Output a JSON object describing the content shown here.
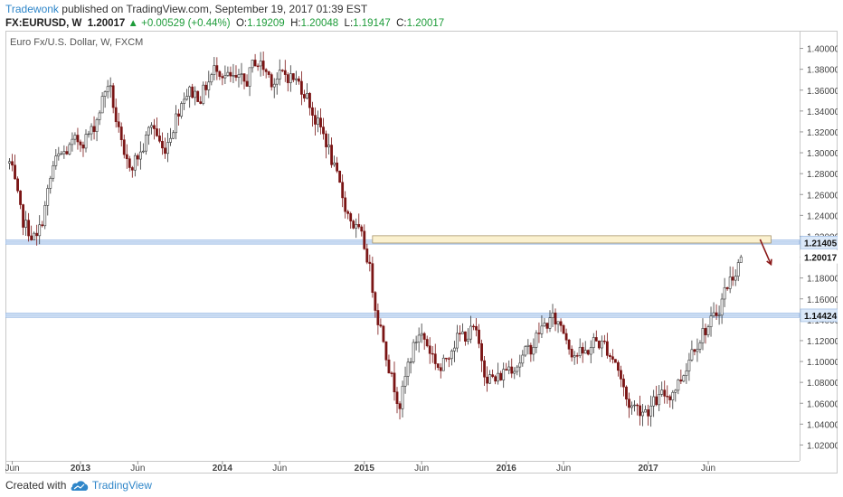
{
  "header": {
    "author": "Tradewonk",
    "published_text": "published on TradingView.com, September 19, 2017 01:39 EST",
    "symbol": "FX:EURUSD, W",
    "price": "1.20017",
    "change": "+0.00529 (+0.44%)",
    "open_label": "O:",
    "open": "1.19209",
    "high_label": "H:",
    "high": "1.20048",
    "low_label": "L:",
    "low": "1.19147",
    "close_label": "C:",
    "close": "1.20017"
  },
  "footer": {
    "created_with": "Created with",
    "brand": "TradingView"
  },
  "colors": {
    "up": "#1e9c3a",
    "link": "#2f86c9",
    "candle_down": "#7a1414",
    "candle_up": "#ffffff"
  },
  "chart_data": {
    "type": "candlestick",
    "title": "Euro Fx/U.S. Dollar, W, FXCM",
    "ylim": [
      1.01,
      1.41
    ],
    "y_ticks": [
      1.02,
      1.04,
      1.06,
      1.08,
      1.1,
      1.12,
      1.14,
      1.16,
      1.18,
      1.2,
      1.22,
      1.24,
      1.26,
      1.28,
      1.3,
      1.32,
      1.34,
      1.36,
      1.38,
      1.4
    ],
    "x_ticks": [
      {
        "label": "Jun",
        "idx": 1
      },
      {
        "label": "2013",
        "idx": 26
      },
      {
        "label": "Jun",
        "idx": 47
      },
      {
        "label": "2014",
        "idx": 78
      },
      {
        "label": "Jun",
        "idx": 99
      },
      {
        "label": "2015",
        "idx": 130
      },
      {
        "label": "Jun",
        "idx": 151
      },
      {
        "label": "2016",
        "idx": 182
      },
      {
        "label": "Jun",
        "idx": 203
      },
      {
        "label": "2017",
        "idx": 234
      },
      {
        "label": "Jun",
        "idx": 256
      }
    ],
    "price_tags": [
      {
        "value": 1.21405,
        "label": "1.21405"
      },
      {
        "value": 1.20017,
        "label": "1.20017"
      },
      {
        "value": 1.14424,
        "label": "1.14424"
      }
    ],
    "horizontal_zones": [
      [
        1.2125,
        1.2163
      ],
      [
        1.1423,
        1.1462
      ]
    ],
    "resistance_box": {
      "from_idx": 133,
      "to_idx": 279,
      "y_low": 1.2135,
      "y_high": 1.2205
    },
    "arrow": {
      "from_idx": 275,
      "from_y": 1.217,
      "to_idx": 279,
      "to_y": 1.193
    },
    "anchors": [
      [
        0,
        1.29
      ],
      [
        4,
        1.235
      ],
      [
        10,
        1.215
      ],
      [
        16,
        1.29
      ],
      [
        22,
        1.305
      ],
      [
        30,
        1.32
      ],
      [
        36,
        1.37
      ],
      [
        42,
        1.285
      ],
      [
        48,
        1.3
      ],
      [
        52,
        1.33
      ],
      [
        56,
        1.3
      ],
      [
        64,
        1.36
      ],
      [
        70,
        1.355
      ],
      [
        76,
        1.385
      ],
      [
        80,
        1.37
      ],
      [
        86,
        1.365
      ],
      [
        90,
        1.39
      ],
      [
        96,
        1.37
      ],
      [
        102,
        1.375
      ],
      [
        108,
        1.36
      ],
      [
        112,
        1.33
      ],
      [
        116,
        1.31
      ],
      [
        120,
        1.27
      ],
      [
        124,
        1.24
      ],
      [
        128,
        1.22
      ],
      [
        131,
        1.2
      ],
      [
        134,
        1.15
      ],
      [
        137,
        1.12
      ],
      [
        140,
        1.08
      ],
      [
        143,
        1.06
      ],
      [
        146,
        1.1
      ],
      [
        150,
        1.13
      ],
      [
        154,
        1.11
      ],
      [
        158,
        1.09
      ],
      [
        162,
        1.12
      ],
      [
        166,
        1.125
      ],
      [
        170,
        1.13
      ],
      [
        174,
        1.09
      ],
      [
        178,
        1.08
      ],
      [
        182,
        1.095
      ],
      [
        186,
        1.1
      ],
      [
        190,
        1.11
      ],
      [
        194,
        1.13
      ],
      [
        198,
        1.14
      ],
      [
        202,
        1.135
      ],
      [
        206,
        1.11
      ],
      [
        210,
        1.105
      ],
      [
        214,
        1.12
      ],
      [
        218,
        1.115
      ],
      [
        222,
        1.1
      ],
      [
        226,
        1.06
      ],
      [
        230,
        1.055
      ],
      [
        234,
        1.055
      ],
      [
        238,
        1.065
      ],
      [
        242,
        1.07
      ],
      [
        246,
        1.085
      ],
      [
        250,
        1.115
      ],
      [
        254,
        1.13
      ],
      [
        258,
        1.14
      ],
      [
        262,
        1.17
      ],
      [
        266,
        1.19
      ],
      [
        268,
        1.2
      ]
    ]
  }
}
